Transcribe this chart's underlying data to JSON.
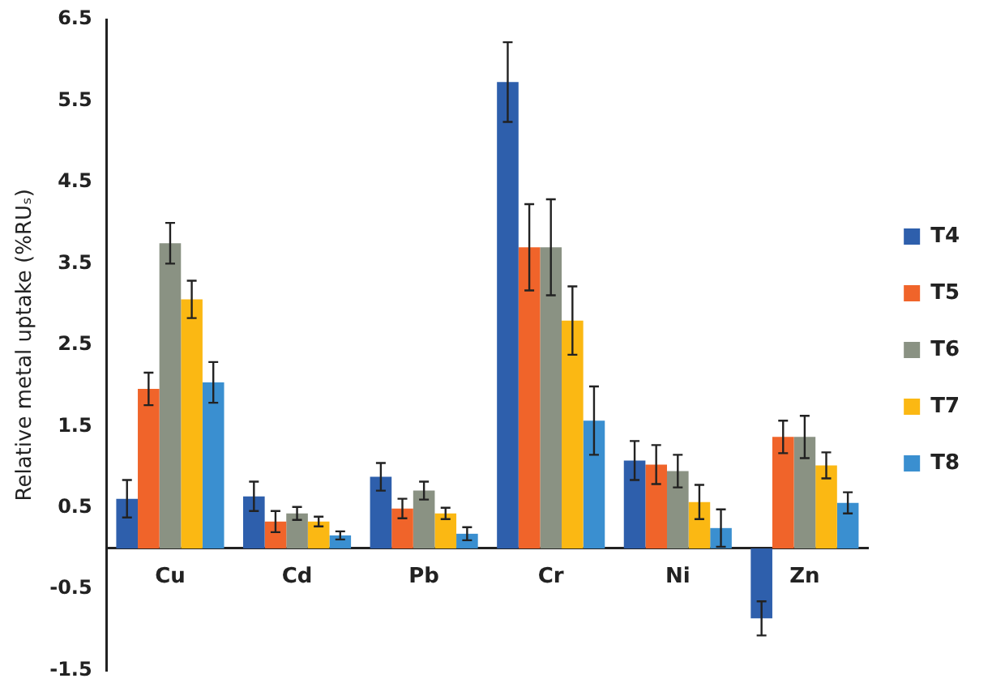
{
  "chart_data": {
    "type": "bar",
    "ylabel": "Relative metal uptake (%RUₛ)",
    "categories": [
      "Cu",
      "Cd",
      "Pb",
      "Cr",
      "Ni",
      "Zn"
    ],
    "series": [
      {
        "name": "T4",
        "color": "#2e5fac",
        "values": [
          0.61,
          0.64,
          0.88,
          5.73,
          1.08,
          -0.86
        ],
        "errors": [
          0.23,
          0.18,
          0.17,
          0.49,
          0.24,
          0.21
        ]
      },
      {
        "name": "T5",
        "color": "#f0642a",
        "values": [
          1.96,
          0.33,
          0.49,
          3.7,
          1.03,
          1.37
        ],
        "errors": [
          0.2,
          0.13,
          0.12,
          0.53,
          0.24,
          0.2
        ]
      },
      {
        "name": "T6",
        "color": "#8a9283",
        "values": [
          3.75,
          0.43,
          0.71,
          3.7,
          0.95,
          1.37
        ],
        "errors": [
          0.25,
          0.08,
          0.11,
          0.59,
          0.2,
          0.26
        ]
      },
      {
        "name": "T7",
        "color": "#fbb813",
        "values": [
          3.06,
          0.33,
          0.43,
          2.8,
          0.57,
          1.02
        ],
        "errors": [
          0.23,
          0.06,
          0.07,
          0.42,
          0.21,
          0.16
        ]
      },
      {
        "name": "T8",
        "color": "#3a8fd0",
        "values": [
          2.04,
          0.16,
          0.18,
          1.57,
          0.25,
          0.56
        ],
        "errors": [
          0.25,
          0.05,
          0.08,
          0.42,
          0.23,
          0.13
        ]
      }
    ],
    "ylim": [
      -1.5,
      6.5
    ],
    "yticks": [
      -1.5,
      -0.5,
      0.5,
      1.5,
      2.5,
      3.5,
      4.5,
      5.5,
      6.5
    ],
    "grid": false,
    "legend": "right"
  }
}
